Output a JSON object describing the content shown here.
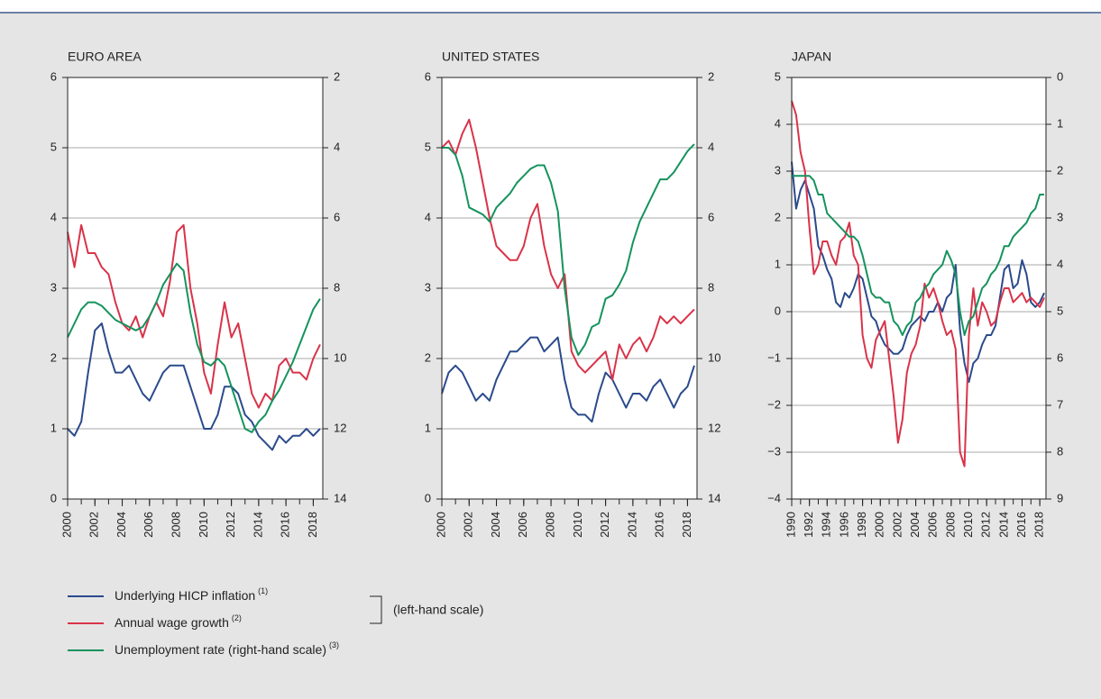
{
  "chart_data": [
    {
      "type": "line",
      "title": "EURO AREA",
      "xlim": [
        2000,
        2018.7
      ],
      "xticks": [
        2000,
        2002,
        2004,
        2006,
        2008,
        2010,
        2012,
        2014,
        2016,
        2018
      ],
      "xminorticks": [
        2000,
        2001,
        2002,
        2003,
        2004,
        2005,
        2006,
        2007,
        2008,
        2009,
        2010,
        2011,
        2012,
        2013,
        2014,
        2015,
        2016,
        2017,
        2018
      ],
      "ylim": [
        0,
        6
      ],
      "yticks": [
        0,
        1,
        2,
        3,
        4,
        5,
        6
      ],
      "y2lim": [
        14,
        2
      ],
      "y2ticks": [
        2,
        4,
        6,
        8,
        10,
        12,
        14
      ],
      "grid": true,
      "x": [
        2000,
        2000.5,
        2001,
        2001.5,
        2002,
        2002.5,
        2003,
        2003.5,
        2004,
        2004.5,
        2005,
        2005.5,
        2006,
        2006.5,
        2007,
        2007.5,
        2008,
        2008.5,
        2009,
        2009.5,
        2010,
        2010.5,
        2011,
        2011.5,
        2012,
        2012.5,
        2013,
        2013.5,
        2014,
        2014.5,
        2015,
        2015.5,
        2016,
        2016.5,
        2017,
        2017.5,
        2018,
        2018.5
      ],
      "legend_bracket_label": "(left-hand scale)",
      "series": [
        {
          "name": "Underlying HICP inflation",
          "footnote": "(1)",
          "color": "#2a4a8c",
          "values": [
            1.0,
            0.9,
            1.1,
            1.8,
            2.4,
            2.5,
            2.1,
            1.8,
            1.8,
            1.9,
            1.7,
            1.5,
            1.4,
            1.6,
            1.8,
            1.9,
            1.9,
            1.9,
            1.6,
            1.3,
            1.0,
            1.0,
            1.2,
            1.6,
            1.6,
            1.5,
            1.2,
            1.1,
            0.9,
            0.8,
            0.7,
            0.9,
            0.8,
            0.9,
            0.9,
            1.0,
            0.9,
            1.0
          ]
        },
        {
          "name": "Annual wage growth",
          "footnote": "(2)",
          "color": "#d93349",
          "values": [
            3.8,
            3.3,
            3.9,
            3.5,
            3.5,
            3.3,
            3.2,
            2.8,
            2.5,
            2.4,
            2.6,
            2.3,
            2.6,
            2.8,
            2.6,
            3.1,
            3.8,
            3.9,
            3.0,
            2.5,
            1.8,
            1.5,
            2.2,
            2.8,
            2.3,
            2.5,
            2.0,
            1.5,
            1.3,
            1.5,
            1.4,
            1.9,
            2.0,
            1.8,
            1.8,
            1.7,
            2.0,
            2.2
          ]
        },
        {
          "name": "Unemployment rate (right-hand scale)",
          "footnote": "(3)",
          "color": "#15935d",
          "axis": "y2",
          "values": [
            9.4,
            9.0,
            8.6,
            8.4,
            8.4,
            8.5,
            8.7,
            8.9,
            9.0,
            9.1,
            9.2,
            9.1,
            8.8,
            8.4,
            7.9,
            7.6,
            7.3,
            7.5,
            8.7,
            9.6,
            10.1,
            10.2,
            10.0,
            10.2,
            10.8,
            11.4,
            12.0,
            12.1,
            11.8,
            11.6,
            11.2,
            10.9,
            10.5,
            10.1,
            9.6,
            9.1,
            8.6,
            8.3
          ]
        }
      ]
    },
    {
      "type": "line",
      "title": "UNITED STATES",
      "xlim": [
        2000,
        2018.7
      ],
      "xticks": [
        2000,
        2002,
        2004,
        2006,
        2008,
        2010,
        2012,
        2014,
        2016,
        2018
      ],
      "xminorticks": [
        2000,
        2001,
        2002,
        2003,
        2004,
        2005,
        2006,
        2007,
        2008,
        2009,
        2010,
        2011,
        2012,
        2013,
        2014,
        2015,
        2016,
        2017,
        2018
      ],
      "ylim": [
        0,
        6
      ],
      "yticks": [
        0,
        1,
        2,
        3,
        4,
        5,
        6
      ],
      "y2lim": [
        14,
        2
      ],
      "y2ticks": [
        2,
        4,
        6,
        8,
        10,
        12,
        14
      ],
      "grid": true,
      "x": [
        2000,
        2000.5,
        2001,
        2001.5,
        2002,
        2002.5,
        2003,
        2003.5,
        2004,
        2004.5,
        2005,
        2005.5,
        2006,
        2006.5,
        2007,
        2007.5,
        2008,
        2008.5,
        2009,
        2009.5,
        2010,
        2010.5,
        2011,
        2011.5,
        2012,
        2012.5,
        2013,
        2013.5,
        2014,
        2014.5,
        2015,
        2015.5,
        2016,
        2016.5,
        2017,
        2017.5,
        2018,
        2018.5
      ],
      "series": [
        {
          "color": "#2a4a8c",
          "values": [
            1.5,
            1.8,
            1.9,
            1.8,
            1.6,
            1.4,
            1.5,
            1.4,
            1.7,
            1.9,
            2.1,
            2.1,
            2.2,
            2.3,
            2.3,
            2.1,
            2.2,
            2.3,
            1.7,
            1.3,
            1.2,
            1.2,
            1.1,
            1.5,
            1.8,
            1.7,
            1.5,
            1.3,
            1.5,
            1.5,
            1.4,
            1.6,
            1.7,
            1.5,
            1.3,
            1.5,
            1.6,
            1.9
          ]
        },
        {
          "color": "#d93349",
          "values": [
            5.0,
            5.1,
            4.9,
            5.2,
            5.4,
            5.0,
            4.5,
            4.0,
            3.6,
            3.5,
            3.4,
            3.4,
            3.6,
            4.0,
            4.2,
            3.6,
            3.2,
            3.0,
            3.2,
            2.1,
            1.9,
            1.8,
            1.9,
            2.0,
            2.1,
            1.7,
            2.2,
            2.0,
            2.2,
            2.3,
            2.1,
            2.3,
            2.6,
            2.5,
            2.6,
            2.5,
            2.6,
            2.7
          ]
        },
        {
          "color": "#15935d",
          "axis": "y2",
          "values": [
            4.0,
            4.0,
            4.2,
            4.8,
            5.7,
            5.8,
            5.9,
            6.1,
            5.7,
            5.5,
            5.3,
            5.0,
            4.8,
            4.6,
            4.5,
            4.5,
            5.0,
            5.8,
            8.0,
            9.4,
            9.9,
            9.6,
            9.1,
            9.0,
            8.3,
            8.2,
            7.9,
            7.5,
            6.7,
            6.1,
            5.7,
            5.3,
            4.9,
            4.9,
            4.7,
            4.4,
            4.1,
            3.9
          ]
        }
      ]
    },
    {
      "type": "line",
      "title": "JAPAN",
      "xlim": [
        1990,
        2018.7
      ],
      "xticks": [
        1990,
        1992,
        1994,
        1996,
        1998,
        2000,
        2002,
        2004,
        2006,
        2008,
        2010,
        2012,
        2014,
        2016,
        2018
      ],
      "xminorticks": [
        1990,
        1991,
        1992,
        1993,
        1994,
        1995,
        1996,
        1997,
        1998,
        1999,
        2000,
        2001,
        2002,
        2003,
        2004,
        2005,
        2006,
        2007,
        2008,
        2009,
        2010,
        2011,
        2012,
        2013,
        2014,
        2015,
        2016,
        2017,
        2018
      ],
      "ylim": [
        -4,
        5
      ],
      "yticks": [
        {
          "value": -4,
          "label": "−4"
        },
        {
          "value": -3,
          "label": "−3"
        },
        {
          "value": -2,
          "label": "−2"
        },
        {
          "value": -1,
          "label": "−1"
        },
        0,
        1,
        2,
        3,
        4,
        5
      ],
      "y2lim": [
        9,
        0
      ],
      "y2ticks": [
        0,
        1,
        2,
        3,
        4,
        5,
        6,
        7,
        8,
        9
      ],
      "grid": true,
      "x": [
        1990,
        1990.5,
        1991,
        1991.5,
        1992,
        1992.5,
        1993,
        1993.5,
        1994,
        1994.5,
        1995,
        1995.5,
        1996,
        1996.5,
        1997,
        1997.5,
        1998,
        1998.5,
        1999,
        1999.5,
        2000,
        2000.5,
        2001,
        2001.5,
        2002,
        2002.5,
        2003,
        2003.5,
        2004,
        2004.5,
        2005,
        2005.5,
        2006,
        2006.5,
        2007,
        2007.5,
        2008,
        2008.5,
        2009,
        2009.5,
        2010,
        2010.5,
        2011,
        2011.5,
        2012,
        2012.5,
        2013,
        2013.5,
        2014,
        2014.5,
        2015,
        2015.5,
        2016,
        2016.5,
        2017,
        2017.5,
        2018,
        2018.5
      ],
      "series": [
        {
          "color": "#2a4a8c",
          "values": [
            3.2,
            2.2,
            2.6,
            2.8,
            2.5,
            2.2,
            1.4,
            1.2,
            0.9,
            0.7,
            0.2,
            0.1,
            0.4,
            0.3,
            0.5,
            0.8,
            0.7,
            0.3,
            -0.1,
            -0.2,
            -0.5,
            -0.7,
            -0.8,
            -0.9,
            -0.9,
            -0.8,
            -0.5,
            -0.3,
            -0.2,
            -0.1,
            -0.2,
            0.0,
            0.0,
            0.2,
            0.0,
            0.3,
            0.4,
            1.0,
            -0.4,
            -1.1,
            -1.5,
            -1.1,
            -1.0,
            -0.7,
            -0.5,
            -0.5,
            -0.3,
            0.3,
            0.9,
            1.0,
            0.5,
            0.6,
            1.1,
            0.8,
            0.2,
            0.1,
            0.2,
            0.4
          ]
        },
        {
          "color": "#d93349",
          "values": [
            4.5,
            4.2,
            3.4,
            3.0,
            1.8,
            0.8,
            1.0,
            1.5,
            1.5,
            1.2,
            1.0,
            1.5,
            1.6,
            1.9,
            1.2,
            1.0,
            -0.5,
            -1.0,
            -1.2,
            -0.6,
            -0.4,
            -0.2,
            -1.0,
            -1.8,
            -2.8,
            -2.3,
            -1.3,
            -0.9,
            -0.7,
            -0.3,
            0.6,
            0.3,
            0.5,
            0.2,
            -0.2,
            -0.5,
            -0.4,
            -0.8,
            -3.0,
            -3.3,
            -0.5,
            0.5,
            -0.3,
            0.2,
            0.0,
            -0.3,
            -0.2,
            0.2,
            0.5,
            0.5,
            0.2,
            0.3,
            0.4,
            0.2,
            0.3,
            0.2,
            0.1,
            0.3
          ]
        },
        {
          "color": "#15935d",
          "axis": "y2",
          "values": [
            2.1,
            2.1,
            2.1,
            2.1,
            2.1,
            2.2,
            2.5,
            2.5,
            2.9,
            3.0,
            3.1,
            3.2,
            3.3,
            3.4,
            3.4,
            3.5,
            3.8,
            4.2,
            4.6,
            4.7,
            4.7,
            4.8,
            4.8,
            5.2,
            5.3,
            5.5,
            5.3,
            5.2,
            4.8,
            4.7,
            4.5,
            4.4,
            4.2,
            4.1,
            4.0,
            3.7,
            3.9,
            4.2,
            5.0,
            5.5,
            5.2,
            5.1,
            4.8,
            4.5,
            4.4,
            4.2,
            4.1,
            3.9,
            3.6,
            3.6,
            3.4,
            3.3,
            3.2,
            3.1,
            2.9,
            2.8,
            2.5,
            2.5
          ]
        }
      ]
    }
  ]
}
